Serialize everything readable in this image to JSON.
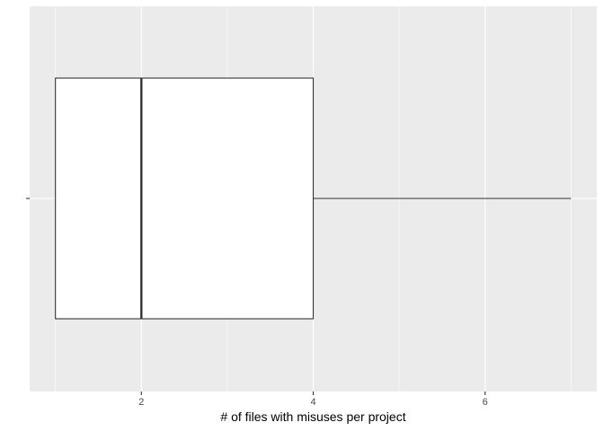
{
  "chart_data": {
    "type": "boxplot",
    "orientation": "horizontal",
    "xlabel": "# of files with misuses per project",
    "ylabel": "",
    "title": "",
    "xlim": [
      0.7,
      7.3
    ],
    "x_ticks": [
      2,
      4,
      6
    ],
    "x_tick_labels": [
      "2",
      "4",
      "6"
    ],
    "y_ticks": [
      ""
    ],
    "grid": true,
    "boxes": [
      {
        "min": 1,
        "q1": 1,
        "median": 2,
        "q3": 4,
        "max": 7
      }
    ],
    "colors": {
      "panel_background": "#EBEBEB",
      "grid_major": "#FFFFFF",
      "box_fill": "#FFFFFF",
      "box_stroke": "#333333",
      "tick_color": "#333333",
      "tick_label_color": "#4D4D4D",
      "axis_title_color": "#000000"
    }
  }
}
